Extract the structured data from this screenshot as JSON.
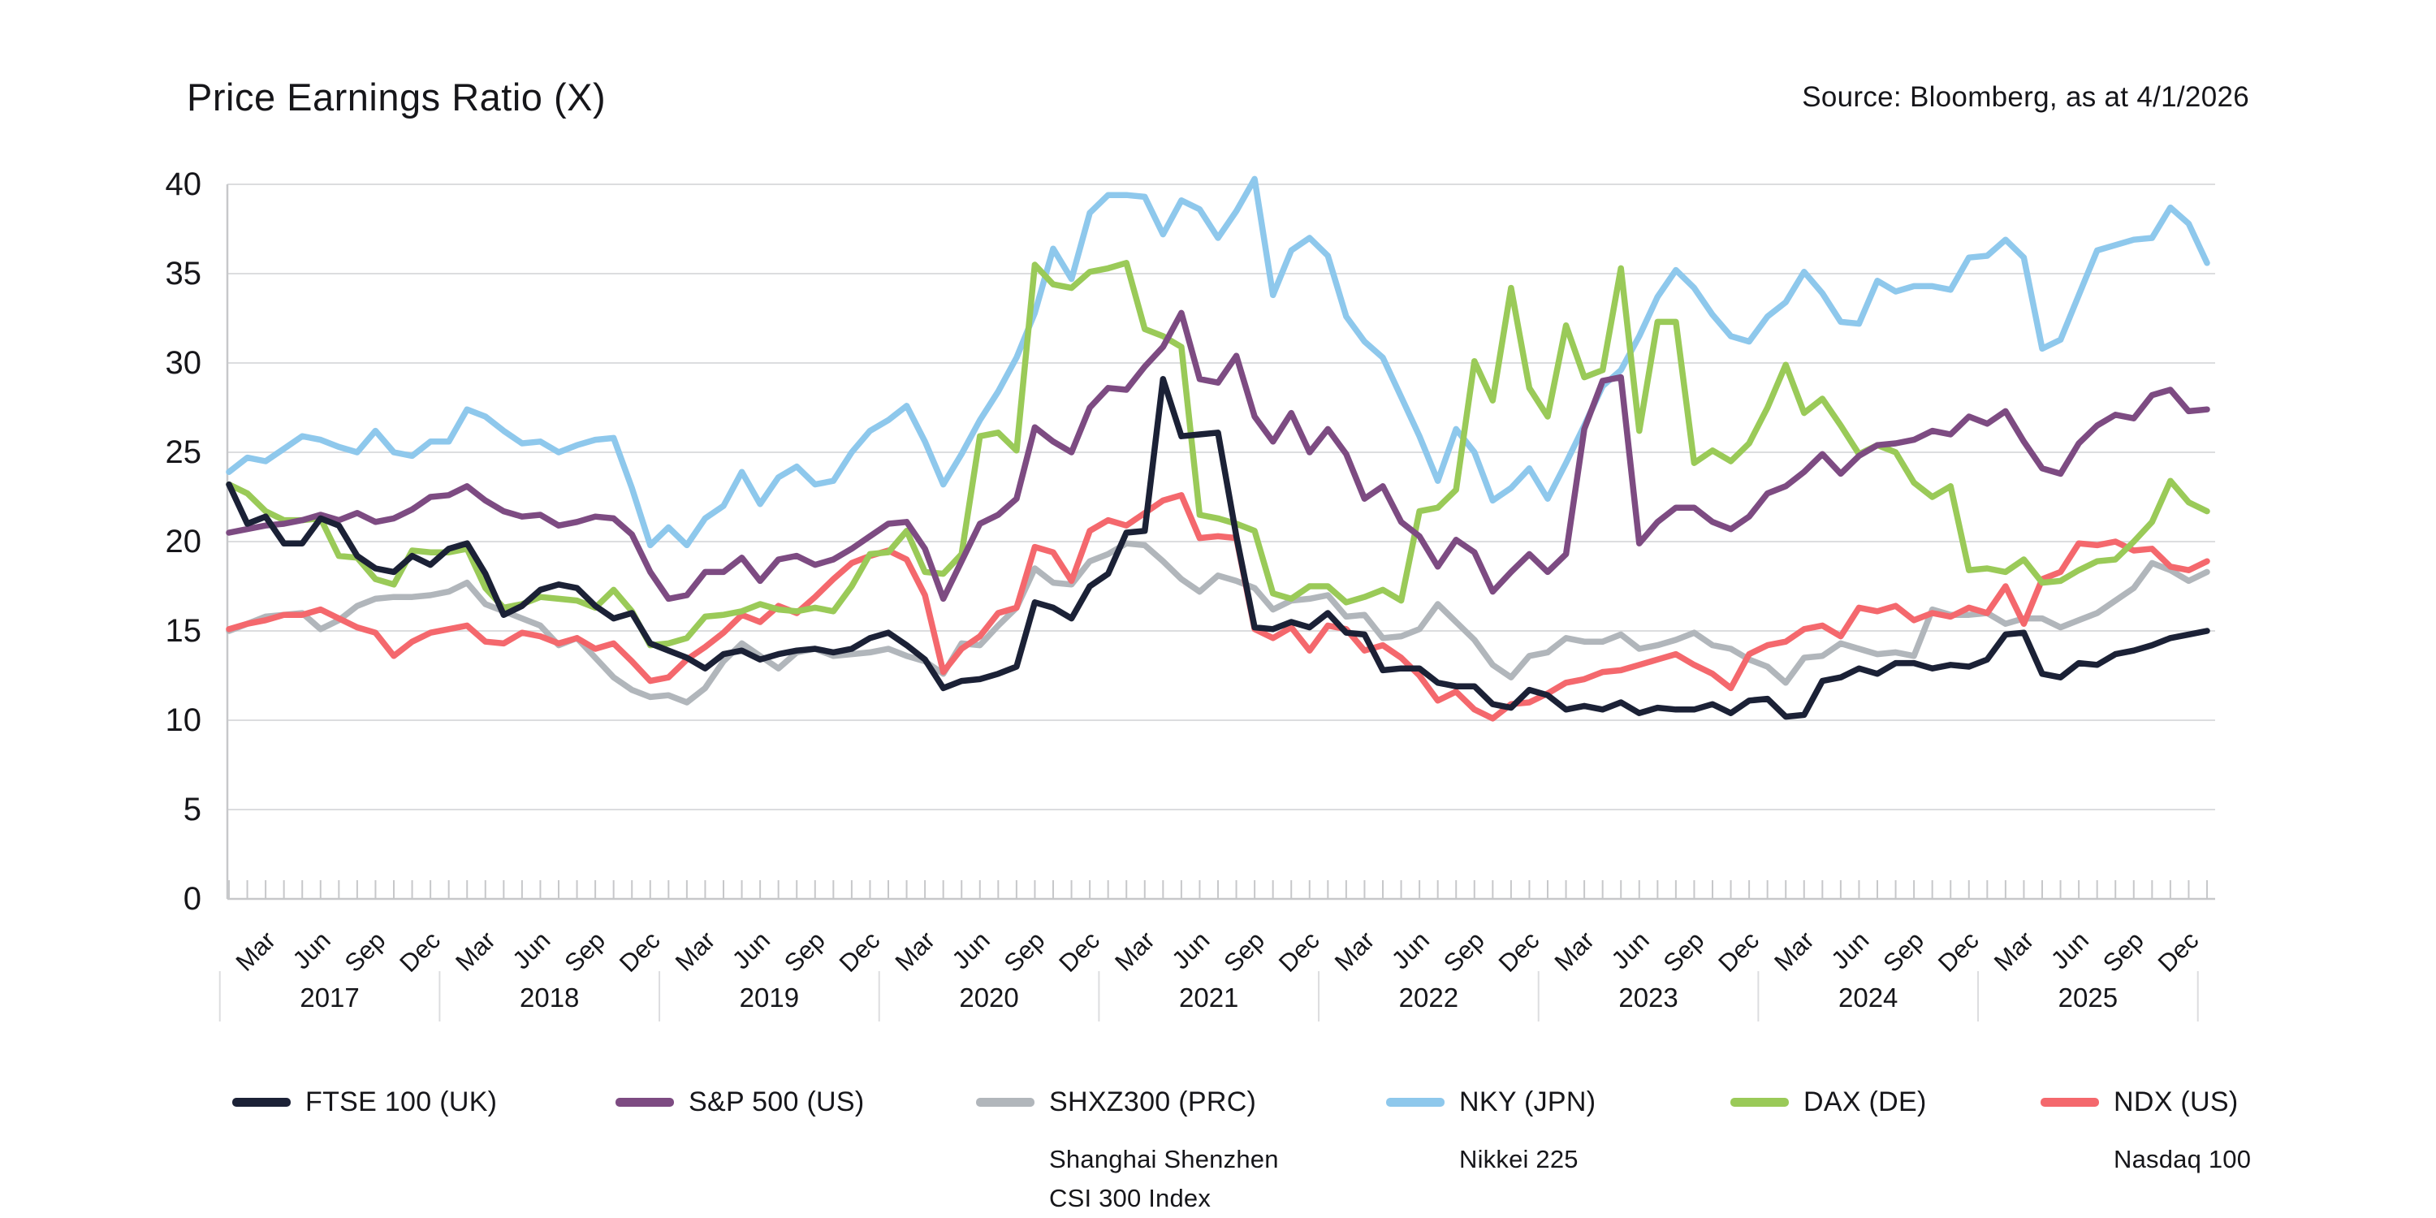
{
  "header": {
    "title": "Price Earnings Ratio (X)",
    "source": "Source: Bloomberg, as at 4/1/2026"
  },
  "chart_data": {
    "type": "line",
    "title": "Price Earnings Ratio (X)",
    "source": "Source: Bloomberg, as at 4/1/2026",
    "x_unit": "month",
    "x_start": "2017-01",
    "x_end": "2026-01",
    "points_per_series": 109,
    "month_tick_labels": [
      "Mar",
      "Jun",
      "Sep",
      "Dec"
    ],
    "year_labels": [
      "2017",
      "2018",
      "2019",
      "2020",
      "2021",
      "2022",
      "2023",
      "2024",
      "2025"
    ],
    "ylim": [
      0,
      40
    ],
    "yticks": [
      0,
      5,
      10,
      15,
      20,
      25,
      30,
      35,
      40
    ],
    "grid": "horizontal",
    "legend_position": "bottom",
    "axis_colors": {
      "gridline": "#dcdddf",
      "spine": "#c7c8ca",
      "text": "#16161a"
    },
    "series": [
      {
        "name": "NKY (JPN)",
        "subtitle": "Nikkei 225",
        "color": "#8ec8ec",
        "values": [
          23.9,
          24.7,
          24.5,
          25.2,
          25.9,
          25.7,
          25.3,
          25.0,
          26.2,
          25.0,
          24.8,
          25.6,
          25.6,
          27.4,
          27.0,
          26.2,
          25.5,
          25.6,
          25.0,
          25.4,
          25.7,
          25.8,
          23.0,
          19.8,
          20.8,
          19.8,
          21.3,
          22.0,
          23.9,
          22.1,
          23.6,
          24.2,
          23.2,
          23.4,
          25.0,
          26.2,
          26.8,
          27.6,
          25.6,
          23.2,
          24.9,
          26.8,
          28.4,
          30.3,
          32.8,
          36.4,
          34.7,
          38.4,
          39.4,
          39.4,
          39.3,
          37.2,
          39.1,
          38.6,
          37.0,
          38.5,
          40.3,
          33.8,
          36.3,
          37.0,
          36.0,
          32.6,
          31.2,
          30.3,
          28.1,
          25.9,
          23.4,
          26.3,
          25.0,
          22.3,
          23.0,
          24.1,
          22.4,
          24.4,
          26.5,
          28.7,
          29.6,
          31.5,
          33.7,
          35.2,
          34.2,
          32.7,
          31.5,
          31.2,
          32.6,
          33.4,
          35.1,
          33.9,
          32.3,
          32.2,
          34.6,
          34.0,
          34.3,
          34.3,
          34.1,
          35.9,
          36.0,
          36.9,
          35.9,
          30.8,
          31.3,
          33.8,
          36.3,
          36.6,
          36.9,
          37.0,
          38.7,
          37.8,
          35.6
        ]
      },
      {
        "name": "SHXZ300 (PRC)",
        "subtitle": "Shanghai Shenzhen\nCSI 300 Index",
        "color": "#b1b6bb",
        "values": [
          15.0,
          15.4,
          15.8,
          15.9,
          16.0,
          15.1,
          15.6,
          16.4,
          16.8,
          16.9,
          16.9,
          17.0,
          17.2,
          17.7,
          16.5,
          16.1,
          15.7,
          15.3,
          14.2,
          14.6,
          13.5,
          12.4,
          11.7,
          11.3,
          11.4,
          11.0,
          11.8,
          13.3,
          14.3,
          13.6,
          12.9,
          13.8,
          14.0,
          13.6,
          13.7,
          13.8,
          14.0,
          13.6,
          13.3,
          12.6,
          14.3,
          14.2,
          15.3,
          16.3,
          18.5,
          17.7,
          17.6,
          18.9,
          19.3,
          19.9,
          19.8,
          18.9,
          17.9,
          17.2,
          18.1,
          17.8,
          17.4,
          16.2,
          16.7,
          16.8,
          17.0,
          15.8,
          15.9,
          14.6,
          14.7,
          15.1,
          16.5,
          15.5,
          14.5,
          13.1,
          12.4,
          13.6,
          13.8,
          14.6,
          14.4,
          14.4,
          14.8,
          14.0,
          14.2,
          14.5,
          14.9,
          14.2,
          14.0,
          13.4,
          13.0,
          12.1,
          13.5,
          13.6,
          14.3,
          14.0,
          13.7,
          13.8,
          13.6,
          16.2,
          15.9,
          15.9,
          16.0,
          15.4,
          15.7,
          15.7,
          15.2,
          15.6,
          16.0,
          16.7,
          17.4,
          18.8,
          18.4,
          17.8,
          18.3
        ]
      },
      {
        "name": "NDX (US)",
        "subtitle": "Nasdaq 100",
        "color": "#f4686d",
        "values": [
          15.1,
          15.4,
          15.6,
          15.9,
          15.9,
          16.2,
          15.7,
          15.2,
          14.9,
          13.6,
          14.4,
          14.9,
          15.1,
          15.3,
          14.4,
          14.3,
          14.9,
          14.7,
          14.3,
          14.6,
          14.0,
          14.3,
          13.3,
          12.2,
          12.4,
          13.4,
          14.1,
          14.9,
          15.9,
          15.5,
          16.4,
          16.0,
          16.9,
          17.9,
          18.8,
          19.2,
          19.5,
          19.0,
          17.0,
          12.7,
          14.0,
          14.7,
          16.0,
          16.3,
          19.7,
          19.4,
          17.8,
          20.6,
          21.2,
          20.9,
          21.6,
          22.3,
          22.6,
          20.2,
          20.3,
          20.2,
          15.1,
          14.6,
          15.2,
          13.9,
          15.3,
          15.1,
          13.9,
          14.2,
          13.5,
          12.5,
          11.1,
          11.6,
          10.6,
          10.1,
          10.9,
          11.0,
          11.5,
          12.1,
          12.3,
          12.7,
          12.8,
          13.1,
          13.4,
          13.7,
          13.1,
          12.6,
          11.8,
          13.7,
          14.2,
          14.4,
          15.1,
          15.3,
          14.7,
          16.3,
          16.1,
          16.4,
          15.6,
          16.0,
          15.8,
          16.3,
          16.0,
          17.5,
          15.4,
          17.9,
          18.3,
          19.9,
          19.8,
          20.0,
          19.5,
          19.6,
          18.6,
          18.4,
          18.9
        ]
      },
      {
        "name": "DAX (DE)",
        "subtitle": "",
        "color": "#9aca58",
        "values": [
          23.2,
          22.7,
          21.7,
          21.2,
          21.2,
          21.3,
          19.2,
          19.1,
          17.9,
          17.6,
          19.5,
          19.4,
          19.4,
          19.6,
          17.4,
          16.3,
          16.5,
          16.9,
          16.8,
          16.7,
          16.3,
          17.3,
          16.1,
          14.2,
          14.3,
          14.6,
          15.8,
          15.9,
          16.1,
          16.5,
          16.2,
          16.1,
          16.3,
          16.1,
          17.5,
          19.3,
          19.4,
          20.6,
          18.3,
          18.2,
          19.3,
          25.9,
          26.1,
          25.1,
          35.5,
          34.4,
          34.2,
          35.1,
          35.3,
          35.6,
          31.9,
          31.5,
          30.9,
          21.5,
          21.3,
          21.0,
          20.6,
          17.1,
          16.8,
          17.5,
          17.5,
          16.6,
          16.9,
          17.3,
          16.7,
          21.7,
          21.9,
          22.9,
          30.1,
          27.9,
          34.2,
          28.6,
          27.0,
          32.1,
          29.2,
          29.6,
          35.3,
          26.2,
          32.3,
          32.3,
          24.4,
          25.1,
          24.5,
          25.5,
          27.5,
          29.9,
          27.2,
          28.0,
          26.5,
          24.9,
          25.4,
          25.0,
          23.3,
          22.5,
          23.1,
          18.4,
          18.5,
          18.3,
          19.0,
          17.7,
          17.8,
          18.4,
          18.9,
          19.0,
          20.0,
          21.1,
          23.4,
          22.2,
          21.7
        ]
      },
      {
        "name": "S&P 500 (US)",
        "subtitle": "",
        "color": "#7d4b82",
        "values": [
          20.5,
          20.7,
          20.9,
          21.0,
          21.2,
          21.5,
          21.2,
          21.6,
          21.1,
          21.3,
          21.8,
          22.5,
          22.6,
          23.1,
          22.3,
          21.7,
          21.4,
          21.5,
          20.9,
          21.1,
          21.4,
          21.3,
          20.4,
          18.3,
          16.8,
          17.0,
          18.3,
          18.3,
          19.1,
          17.8,
          19.0,
          19.2,
          18.7,
          19.0,
          19.6,
          20.3,
          21.0,
          21.1,
          19.6,
          16.8,
          18.9,
          21.0,
          21.5,
          22.4,
          26.4,
          25.6,
          25.0,
          27.5,
          28.6,
          28.5,
          29.8,
          30.9,
          32.8,
          29.1,
          28.9,
          30.4,
          27.0,
          25.6,
          27.2,
          25.0,
          26.3,
          24.9,
          22.4,
          23.1,
          21.1,
          20.3,
          18.6,
          20.1,
          19.4,
          17.2,
          18.3,
          19.3,
          18.3,
          19.3,
          26.3,
          29.0,
          29.2,
          19.9,
          21.1,
          21.9,
          21.9,
          21.1,
          20.7,
          21.4,
          22.7,
          23.1,
          23.9,
          24.9,
          23.8,
          24.8,
          25.4,
          25.5,
          25.7,
          26.2,
          26.0,
          27.0,
          26.6,
          27.3,
          25.6,
          24.1,
          23.8,
          25.5,
          26.5,
          27.1,
          26.9,
          28.2,
          28.5,
          27.3,
          27.4
        ]
      },
      {
        "name": "FTSE 100 (UK)",
        "subtitle": "",
        "color": "#1b2136",
        "values": [
          23.2,
          21.0,
          21.4,
          19.9,
          19.9,
          21.3,
          20.9,
          19.2,
          18.5,
          18.3,
          19.2,
          18.7,
          19.6,
          19.9,
          18.2,
          15.9,
          16.4,
          17.3,
          17.6,
          17.4,
          16.4,
          15.7,
          16.0,
          14.3,
          13.9,
          13.5,
          12.9,
          13.7,
          13.9,
          13.4,
          13.7,
          13.9,
          14.0,
          13.8,
          14.0,
          14.6,
          14.9,
          14.2,
          13.4,
          11.8,
          12.2,
          12.3,
          12.6,
          13.0,
          16.6,
          16.3,
          15.7,
          17.5,
          18.2,
          20.5,
          20.6,
          29.1,
          25.9,
          26.0,
          26.1,
          20.3,
          15.2,
          15.1,
          15.5,
          15.2,
          16.0,
          14.9,
          14.8,
          12.8,
          12.9,
          12.9,
          12.1,
          11.9,
          11.9,
          10.9,
          10.7,
          11.7,
          11.4,
          10.6,
          10.8,
          10.6,
          11.0,
          10.4,
          10.7,
          10.6,
          10.6,
          10.9,
          10.4,
          11.1,
          11.2,
          10.2,
          10.3,
          12.2,
          12.4,
          12.9,
          12.6,
          13.2,
          13.2,
          12.9,
          13.1,
          13.0,
          13.4,
          14.8,
          14.9,
          12.6,
          12.4,
          13.2,
          13.1,
          13.7,
          13.9,
          14.2,
          14.6,
          14.8,
          15.0
        ]
      }
    ],
    "legend_order": [
      5,
      4,
      1,
      0,
      3,
      2
    ],
    "legend_x": [
      286,
      758,
      1202,
      1707,
      2131,
      2513
    ]
  }
}
